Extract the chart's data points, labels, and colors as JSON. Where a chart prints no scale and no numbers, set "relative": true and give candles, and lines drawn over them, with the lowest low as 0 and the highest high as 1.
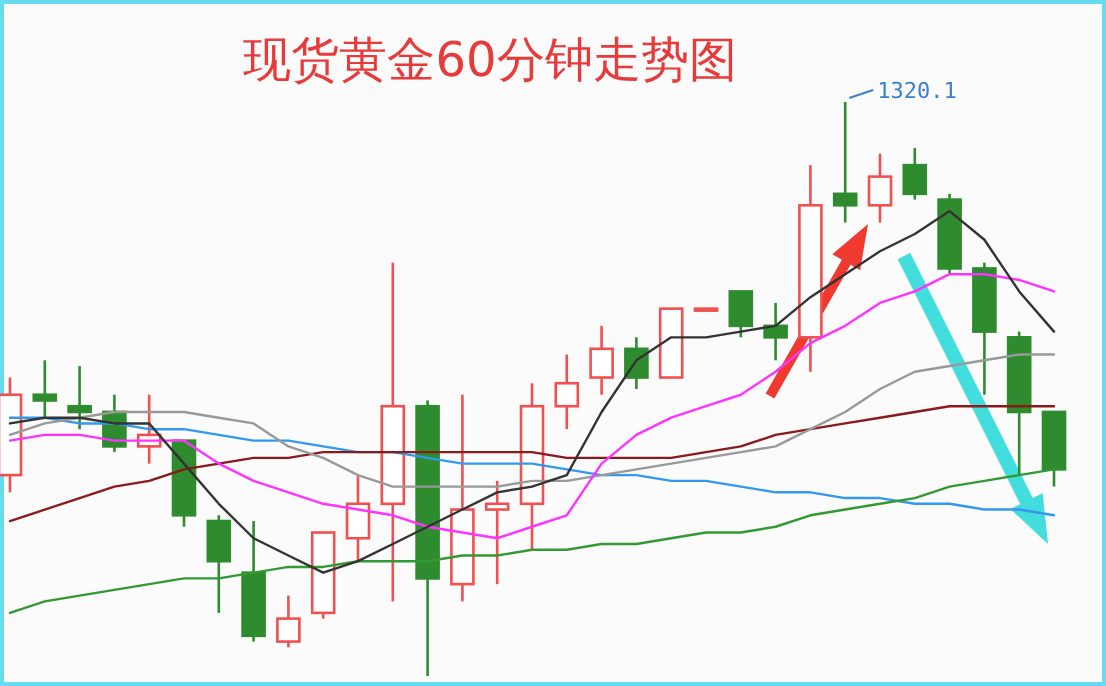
{
  "chart_data": {
    "type": "candlestick",
    "title": "现货黄金60分钟走势图",
    "relative": true,
    "categories": [
      null,
      null,
      null,
      null,
      null,
      null,
      null,
      null,
      null,
      null,
      null,
      null,
      null,
      null,
      null,
      null,
      null,
      null,
      null,
      null,
      null,
      null,
      null,
      null,
      null,
      null,
      null,
      null,
      null,
      null,
      null
    ],
    "ohlc": [
      [
        0.35,
        0.52,
        0.32,
        0.49
      ],
      [
        0.49,
        0.55,
        0.45,
        0.48
      ],
      [
        0.47,
        0.54,
        0.43,
        0.46
      ],
      [
        0.46,
        0.49,
        0.39,
        0.4
      ],
      [
        0.4,
        0.49,
        0.37,
        0.42
      ],
      [
        0.41,
        0.41,
        0.26,
        0.28
      ],
      [
        0.27,
        0.28,
        0.11,
        0.2
      ],
      [
        0.18,
        0.27,
        0.06,
        0.07
      ],
      [
        0.06,
        0.14,
        0.05,
        0.1
      ],
      [
        0.11,
        0.25,
        0.1,
        0.25
      ],
      [
        0.24,
        0.35,
        0.2,
        0.3
      ],
      [
        0.3,
        0.72,
        0.13,
        0.47
      ],
      [
        0.47,
        0.48,
        0,
        0.17
      ],
      [
        0.16,
        0.49,
        0.13,
        0.29
      ],
      [
        0.29,
        0.34,
        0.16,
        0.3
      ],
      [
        0.3,
        0.51,
        0.22,
        0.47
      ],
      [
        0.47,
        0.56,
        0.43,
        0.51
      ],
      [
        0.52,
        0.61,
        0.49,
        0.57
      ],
      [
        0.57,
        0.59,
        0.5,
        0.52
      ],
      [
        0.52,
        0.64,
        0.52,
        0.64
      ],
      [
        0.64,
        0.64,
        0.64,
        0.64
      ],
      [
        0.67,
        0.67,
        0.59,
        0.61
      ],
      [
        0.61,
        0.65,
        0.55,
        0.59
      ],
      [
        0.59,
        0.89,
        0.53,
        0.82
      ],
      [
        0.84,
        1,
        0.79,
        0.82
      ],
      [
        0.82,
        0.91,
        0.79,
        0.87
      ],
      [
        0.89,
        0.92,
        0.83,
        0.84
      ],
      [
        0.83,
        0.84,
        0.7,
        0.71
      ],
      [
        0.71,
        0.72,
        0.49,
        0.6
      ],
      [
        0.59,
        0.6,
        0.35,
        0.46
      ],
      [
        0.46,
        0.46,
        0.33,
        0.36
      ]
    ],
    "series": [
      {
        "type": "line",
        "color": "#3399ee",
        "values": [
          0.45,
          0.45,
          0.44,
          0.44,
          0.43,
          0.43,
          0.42,
          0.41,
          0.41,
          0.4,
          0.39,
          0.39,
          0.38,
          0.37,
          0.37,
          0.37,
          0.36,
          0.35,
          0.35,
          0.34,
          0.34,
          0.33,
          0.32,
          0.32,
          0.31,
          0.31,
          0.3,
          0.3,
          0.29,
          0.29,
          0.28
        ]
      },
      {
        "type": "line",
        "color": "#339933",
        "values": [
          0.11,
          0.13,
          0.14,
          0.15,
          0.16,
          0.17,
          0.17,
          0.18,
          0.19,
          0.19,
          0.2,
          0.2,
          0.2,
          0.21,
          0.21,
          0.22,
          0.22,
          0.23,
          0.23,
          0.24,
          0.25,
          0.25,
          0.26,
          0.28,
          0.29,
          0.3,
          0.31,
          0.33,
          0.34,
          0.35,
          0.36
        ]
      },
      {
        "type": "line",
        "color": "#8b1a1a",
        "values": [
          0.27,
          0.29,
          0.31,
          0.33,
          0.34,
          0.36,
          0.37,
          0.38,
          0.38,
          0.39,
          0.39,
          0.39,
          0.39,
          0.39,
          0.39,
          0.39,
          0.38,
          0.38,
          0.38,
          0.38,
          0.39,
          0.4,
          0.42,
          0.43,
          0.44,
          0.45,
          0.46,
          0.47,
          0.47,
          0.47,
          0.47
        ]
      },
      {
        "type": "line",
        "color": "#999999",
        "values": [
          0.42,
          0.44,
          0.45,
          0.46,
          0.46,
          0.46,
          0.45,
          0.44,
          0.4,
          0.38,
          0.35,
          0.33,
          0.33,
          0.33,
          0.33,
          0.34,
          0.34,
          0.35,
          0.36,
          0.37,
          0.38,
          0.39,
          0.4,
          0.43,
          0.46,
          0.5,
          0.53,
          0.54,
          0.55,
          0.56,
          0.56
        ]
      },
      {
        "type": "line",
        "color": "#ff33ff",
        "values": [
          0.41,
          0.42,
          0.42,
          0.41,
          0.41,
          0.41,
          0.37,
          0.34,
          0.32,
          0.3,
          0.29,
          0.28,
          0.26,
          0.25,
          0.24,
          0.26,
          0.28,
          0.37,
          0.42,
          0.45,
          0.47,
          0.49,
          0.53,
          0.58,
          0.61,
          0.65,
          0.67,
          0.7,
          0.7,
          0.69,
          0.67
        ]
      },
      {
        "type": "line",
        "color": "#333333",
        "values": [
          0.44,
          0.45,
          0.45,
          0.44,
          0.44,
          0.37,
          0.3,
          0.24,
          0.21,
          0.18,
          0.2,
          0.23,
          0.26,
          0.29,
          0.32,
          0.33,
          0.35,
          0.46,
          0.55,
          0.59,
          0.59,
          0.6,
          0.61,
          0.66,
          0.7,
          0.74,
          0.77,
          0.81,
          0.76,
          0.67,
          0.6
        ]
      }
    ],
    "annotations": [
      "1320.1"
    ]
  }
}
